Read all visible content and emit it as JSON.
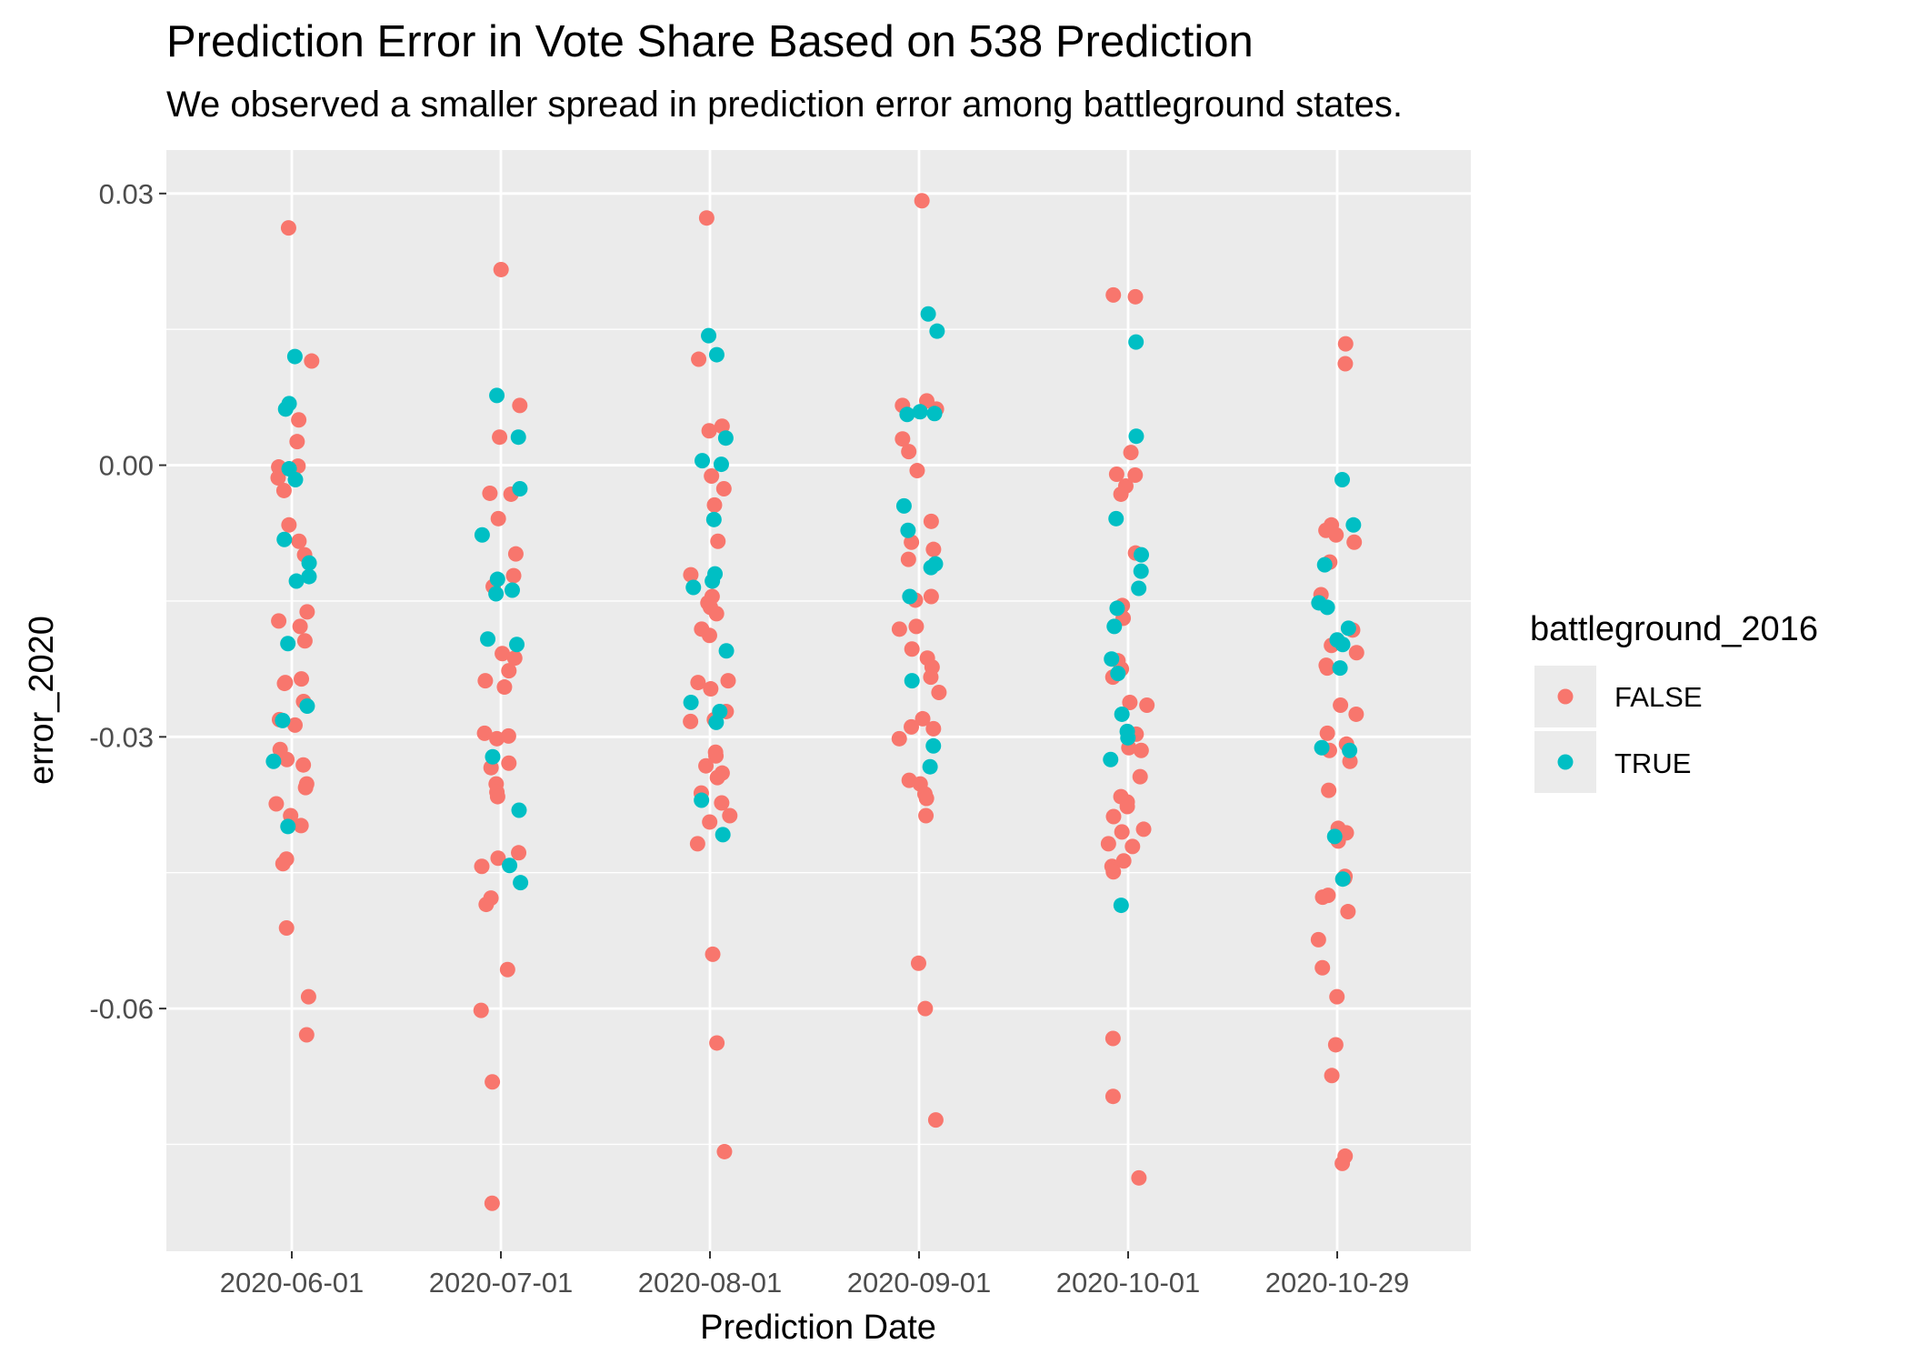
{
  "chart_data": {
    "type": "scatter",
    "title": "Prediction Error in Vote Share Based on 538 Prediction",
    "subtitle": "We observed a smaller spread in prediction error among battleground states.",
    "xlabel": "Prediction Date",
    "ylabel": "error_2020",
    "categories": [
      "2020-06-01",
      "2020-07-01",
      "2020-08-01",
      "2020-09-01",
      "2020-10-01",
      "2020-10-29"
    ],
    "y_ticks": [
      0.03,
      0.0,
      -0.03,
      -0.06
    ],
    "y_tick_labels": [
      "0.03",
      "0.00",
      "-0.03",
      "-0.06"
    ],
    "ylim": [
      -0.0868,
      0.0348
    ],
    "grid": true,
    "legend": {
      "title": "battleground_2016",
      "position": "right"
    },
    "series": [
      {
        "name": "FALSE",
        "color": "#F8766D",
        "points": [
          [
            0,
            -0.0001
          ],
          [
            0,
            -0.0028
          ],
          [
            0,
            0.0026
          ],
          [
            0,
            0.0115
          ],
          [
            0,
            -0.0084
          ],
          [
            0,
            0.005
          ],
          [
            0,
            -0.0172
          ],
          [
            0,
            -0.0162
          ],
          [
            0,
            -0.0178
          ],
          [
            0,
            -0.0194
          ],
          [
            0,
            -0.0236
          ],
          [
            0,
            -0.024
          ],
          [
            0,
            -0.0261
          ],
          [
            0,
            -0.0281
          ],
          [
            0,
            -0.0287
          ],
          [
            0,
            -0.0321
          ],
          [
            0,
            -0.0314
          ],
          [
            0,
            -0.0331
          ],
          [
            0,
            -0.0352
          ],
          [
            0,
            -0.0356
          ],
          [
            0,
            -0.0374
          ],
          [
            0,
            -0.0387
          ],
          [
            0,
            -0.0398
          ],
          [
            0,
            -0.0435
          ],
          [
            0,
            -0.044
          ],
          [
            0,
            -0.0511
          ],
          [
            0,
            -0.0587
          ],
          [
            0,
            -0.0629
          ],
          [
            0,
            0.0262
          ],
          [
            0,
            -0.0066
          ],
          [
            0,
            -0.0099
          ],
          [
            0,
            -0.0002
          ],
          [
            0,
            -0.0014
          ],
          [
            0,
            -0.0241
          ],
          [
            0,
            -0.0325
          ],
          [
            1,
            0.0216
          ],
          [
            1,
            0.0066
          ],
          [
            1,
            0.0031
          ],
          [
            1,
            -0.0032
          ],
          [
            1,
            -0.0031
          ],
          [
            1,
            -0.0059
          ],
          [
            1,
            -0.0098
          ],
          [
            1,
            -0.0122
          ],
          [
            1,
            -0.0134
          ],
          [
            1,
            -0.0208
          ],
          [
            1,
            -0.0213
          ],
          [
            1,
            -0.0227
          ],
          [
            1,
            -0.0238
          ],
          [
            1,
            -0.0245
          ],
          [
            1,
            -0.0296
          ],
          [
            1,
            -0.0299
          ],
          [
            1,
            -0.0302
          ],
          [
            1,
            -0.0329
          ],
          [
            1,
            -0.0334
          ],
          [
            1,
            -0.0352
          ],
          [
            1,
            -0.0361
          ],
          [
            1,
            -0.0366
          ],
          [
            1,
            -0.0428
          ],
          [
            1,
            -0.0434
          ],
          [
            1,
            -0.0443
          ],
          [
            1,
            -0.0478
          ],
          [
            1,
            -0.0485
          ],
          [
            1,
            -0.0557
          ],
          [
            1,
            -0.0602
          ],
          [
            1,
            -0.0681
          ],
          [
            1,
            -0.0815
          ],
          [
            2,
            0.0273
          ],
          [
            2,
            0.0117
          ],
          [
            2,
            0.0043
          ],
          [
            2,
            0.0038
          ],
          [
            2,
            -0.0012
          ],
          [
            2,
            -0.0026
          ],
          [
            2,
            -0.0044
          ],
          [
            2,
            -0.0084
          ],
          [
            2,
            -0.0121
          ],
          [
            2,
            -0.0145
          ],
          [
            2,
            -0.0152
          ],
          [
            2,
            -0.0157
          ],
          [
            2,
            -0.0164
          ],
          [
            2,
            -0.0181
          ],
          [
            2,
            -0.0188
          ],
          [
            2,
            -0.0238
          ],
          [
            2,
            -0.024
          ],
          [
            2,
            -0.0247
          ],
          [
            2,
            -0.0272
          ],
          [
            2,
            -0.0281
          ],
          [
            2,
            -0.0283
          ],
          [
            2,
            -0.0317
          ],
          [
            2,
            -0.0321
          ],
          [
            2,
            -0.0332
          ],
          [
            2,
            -0.034
          ],
          [
            2,
            -0.0345
          ],
          [
            2,
            -0.0362
          ],
          [
            2,
            -0.0373
          ],
          [
            2,
            -0.0387
          ],
          [
            2,
            -0.0394
          ],
          [
            2,
            -0.0418
          ],
          [
            2,
            -0.054
          ],
          [
            2,
            -0.0638
          ],
          [
            2,
            -0.0758
          ],
          [
            3,
            0.0292
          ],
          [
            3,
            0.0071
          ],
          [
            3,
            0.0066
          ],
          [
            3,
            0.0062
          ],
          [
            3,
            0.0029
          ],
          [
            3,
            0.0015
          ],
          [
            3,
            -0.0006
          ],
          [
            3,
            -0.0062
          ],
          [
            3,
            -0.0085
          ],
          [
            3,
            -0.0093
          ],
          [
            3,
            -0.0104
          ],
          [
            3,
            -0.0145
          ],
          [
            3,
            -0.0149
          ],
          [
            3,
            -0.0178
          ],
          [
            3,
            -0.0181
          ],
          [
            3,
            -0.0203
          ],
          [
            3,
            -0.0213
          ],
          [
            3,
            -0.0223
          ],
          [
            3,
            -0.0234
          ],
          [
            3,
            -0.0251
          ],
          [
            3,
            -0.028
          ],
          [
            3,
            -0.0291
          ],
          [
            3,
            -0.0289
          ],
          [
            3,
            -0.0302
          ],
          [
            3,
            -0.0348
          ],
          [
            3,
            -0.0352
          ],
          [
            3,
            -0.0363
          ],
          [
            3,
            -0.0368
          ],
          [
            3,
            -0.0387
          ],
          [
            3,
            -0.055
          ],
          [
            3,
            -0.06
          ],
          [
            3,
            -0.0723
          ],
          [
            4,
            0.0186
          ],
          [
            4,
            0.0188
          ],
          [
            4,
            0.0014
          ],
          [
            4,
            -0.001
          ],
          [
            4,
            -0.0011
          ],
          [
            4,
            -0.0023
          ],
          [
            4,
            -0.0032
          ],
          [
            4,
            -0.0097
          ],
          [
            4,
            -0.0155
          ],
          [
            4,
            -0.0169
          ],
          [
            4,
            -0.0216
          ],
          [
            4,
            -0.0225
          ],
          [
            4,
            -0.0234
          ],
          [
            4,
            -0.0262
          ],
          [
            4,
            -0.0265
          ],
          [
            4,
            -0.0297
          ],
          [
            4,
            -0.0312
          ],
          [
            4,
            -0.0315
          ],
          [
            4,
            -0.0344
          ],
          [
            4,
            -0.0366
          ],
          [
            4,
            -0.0372
          ],
          [
            4,
            -0.0377
          ],
          [
            4,
            -0.0388
          ],
          [
            4,
            -0.0402
          ],
          [
            4,
            -0.0405
          ],
          [
            4,
            -0.0418
          ],
          [
            4,
            -0.0421
          ],
          [
            4,
            -0.0437
          ],
          [
            4,
            -0.0443
          ],
          [
            4,
            -0.0449
          ],
          [
            4,
            -0.0633
          ],
          [
            4,
            -0.0697
          ],
          [
            4,
            -0.0787
          ],
          [
            5,
            0.0134
          ],
          [
            5,
            0.0112
          ],
          [
            5,
            -0.0066
          ],
          [
            5,
            -0.0072
          ],
          [
            5,
            -0.0077
          ],
          [
            5,
            -0.0085
          ],
          [
            5,
            -0.0107
          ],
          [
            5,
            -0.0143
          ],
          [
            5,
            -0.0182
          ],
          [
            5,
            -0.0199
          ],
          [
            5,
            -0.0207
          ],
          [
            5,
            -0.0221
          ],
          [
            5,
            -0.0224
          ],
          [
            5,
            -0.0265
          ],
          [
            5,
            -0.0275
          ],
          [
            5,
            -0.0296
          ],
          [
            5,
            -0.0308
          ],
          [
            5,
            -0.0315
          ],
          [
            5,
            -0.0327
          ],
          [
            5,
            -0.0359
          ],
          [
            5,
            -0.0401
          ],
          [
            5,
            -0.0406
          ],
          [
            5,
            -0.0415
          ],
          [
            5,
            -0.0454
          ],
          [
            5,
            -0.0456
          ],
          [
            5,
            -0.0475
          ],
          [
            5,
            -0.0477
          ],
          [
            5,
            -0.0493
          ],
          [
            5,
            -0.0524
          ],
          [
            5,
            -0.0555
          ],
          [
            5,
            -0.0587
          ],
          [
            5,
            -0.064
          ],
          [
            5,
            -0.0674
          ],
          [
            5,
            -0.0763
          ],
          [
            5,
            -0.0771
          ]
        ]
      },
      {
        "name": "TRUE",
        "color": "#00BFC4",
        "points": [
          [
            0,
            0.012
          ],
          [
            0,
            0.0062
          ],
          [
            0,
            0.0068
          ],
          [
            0,
            -0.0004
          ],
          [
            0,
            -0.0016
          ],
          [
            0,
            -0.0082
          ],
          [
            0,
            -0.0108
          ],
          [
            0,
            -0.0123
          ],
          [
            0,
            -0.0128
          ],
          [
            0,
            -0.0197
          ],
          [
            0,
            -0.0266
          ],
          [
            0,
            -0.0282
          ],
          [
            0,
            -0.0327
          ],
          [
            0,
            -0.0399
          ],
          [
            1,
            0.0077
          ],
          [
            1,
            0.0031
          ],
          [
            1,
            -0.0026
          ],
          [
            1,
            -0.0077
          ],
          [
            1,
            -0.0126
          ],
          [
            1,
            -0.0142
          ],
          [
            1,
            -0.0192
          ],
          [
            1,
            -0.0198
          ],
          [
            1,
            -0.0322
          ],
          [
            1,
            -0.0381
          ],
          [
            1,
            -0.0442
          ],
          [
            1,
            -0.0461
          ],
          [
            1,
            -0.0138
          ],
          [
            2,
            0.0143
          ],
          [
            2,
            0.0122
          ],
          [
            2,
            0.003
          ],
          [
            2,
            0.0005
          ],
          [
            2,
            0.0001
          ],
          [
            2,
            -0.006
          ],
          [
            2,
            -0.012
          ],
          [
            2,
            -0.0128
          ],
          [
            2,
            -0.0135
          ],
          [
            2,
            -0.0205
          ],
          [
            2,
            -0.0272
          ],
          [
            2,
            -0.0262
          ],
          [
            2,
            -0.0284
          ],
          [
            2,
            -0.037
          ],
          [
            2,
            -0.0408
          ],
          [
            3,
            0.0167
          ],
          [
            3,
            0.0148
          ],
          [
            3,
            0.0059
          ],
          [
            3,
            0.0057
          ],
          [
            3,
            0.0056
          ],
          [
            3,
            -0.0045
          ],
          [
            3,
            -0.0072
          ],
          [
            3,
            -0.0109
          ],
          [
            3,
            -0.0113
          ],
          [
            3,
            -0.0145
          ],
          [
            3,
            -0.0238
          ],
          [
            3,
            -0.031
          ],
          [
            3,
            -0.0333
          ],
          [
            4,
            0.0136
          ],
          [
            4,
            0.0032
          ],
          [
            4,
            -0.0059
          ],
          [
            4,
            -0.0099
          ],
          [
            4,
            -0.0117
          ],
          [
            4,
            -0.0136
          ],
          [
            4,
            -0.0158
          ],
          [
            4,
            -0.0178
          ],
          [
            4,
            -0.0214
          ],
          [
            4,
            -0.023
          ],
          [
            4,
            -0.0275
          ],
          [
            4,
            -0.0294
          ],
          [
            4,
            -0.0301
          ],
          [
            4,
            -0.0325
          ],
          [
            4,
            -0.0486
          ],
          [
            5,
            -0.0016
          ],
          [
            5,
            -0.0066
          ],
          [
            5,
            -0.011
          ],
          [
            5,
            -0.0152
          ],
          [
            5,
            -0.0157
          ],
          [
            5,
            -0.018
          ],
          [
            5,
            -0.0193
          ],
          [
            5,
            -0.0198
          ],
          [
            5,
            -0.0224
          ],
          [
            5,
            -0.0312
          ],
          [
            5,
            -0.0315
          ],
          [
            5,
            -0.041
          ],
          [
            5,
            -0.0457
          ]
        ]
      }
    ]
  }
}
